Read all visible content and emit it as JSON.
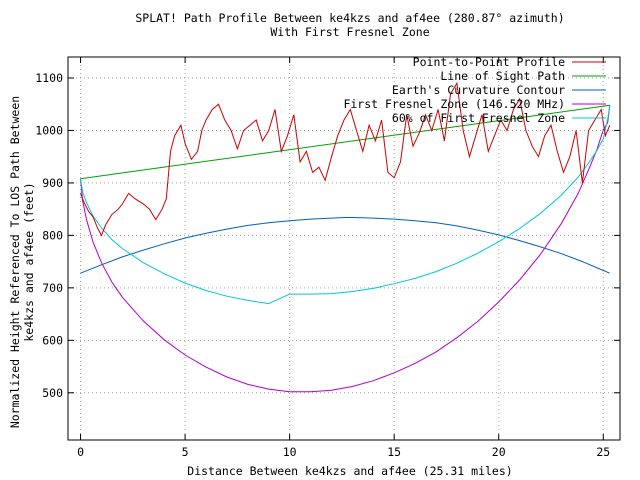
{
  "chart_data": {
    "type": "line",
    "title": "SPLAT! Path Profile Between ke4kzs and af4ee (280.87° azimuth)",
    "subtitle": "With First Fresnel Zone",
    "xlabel": "Distance Between ke4kzs and af4ee (25.31 miles)",
    "ylabel_line1": "Normalized Height Referenced To LOS Path Between",
    "ylabel_line2": "ke4kzs and af4ee (feet)",
    "xlim": [
      -0.6,
      25.8
    ],
    "ylim": [
      410,
      1140
    ],
    "x_ticks": [
      0,
      5,
      10,
      15,
      20,
      25
    ],
    "y_ticks": [
      500,
      600,
      700,
      800,
      900,
      1000,
      1100
    ],
    "grid": true,
    "legend_position": "top-right",
    "colors": {
      "profile": "#cc0000",
      "los": "#00a000",
      "earth": "#0060c0",
      "fresnel": "#b000d0",
      "fresnel60": "#00c8d8"
    },
    "series": [
      {
        "name": "Point-to-Point Profile",
        "key": "profile",
        "x": [
          0,
          0.2,
          0.4,
          0.6,
          0.8,
          1.0,
          1.2,
          1.5,
          1.8,
          2.0,
          2.3,
          2.6,
          3.0,
          3.3,
          3.6,
          3.9,
          4.1,
          4.3,
          4.5,
          4.8,
          5.0,
          5.3,
          5.6,
          5.8,
          6.0,
          6.3,
          6.6,
          6.9,
          7.2,
          7.5,
          7.8,
          8.1,
          8.4,
          8.7,
          9.0,
          9.3,
          9.6,
          9.9,
          10.2,
          10.5,
          10.8,
          11.1,
          11.4,
          11.7,
          12.0,
          12.3,
          12.6,
          12.9,
          13.2,
          13.5,
          13.8,
          14.1,
          14.4,
          14.7,
          15.0,
          15.3,
          15.6,
          15.9,
          16.2,
          16.5,
          16.8,
          17.1,
          17.4,
          17.7,
          18.0,
          18.3,
          18.6,
          18.9,
          19.2,
          19.5,
          19.8,
          20.1,
          20.4,
          20.7,
          21.0,
          21.3,
          21.6,
          21.9,
          22.2,
          22.5,
          22.8,
          23.1,
          23.4,
          23.7,
          24.0,
          24.3,
          24.6,
          24.9,
          25.1,
          25.31
        ],
        "values": [
          880,
          860,
          845,
          835,
          815,
          800,
          820,
          840,
          850,
          860,
          880,
          870,
          860,
          850,
          830,
          850,
          870,
          960,
          990,
          1010,
          975,
          945,
          960,
          1000,
          1020,
          1040,
          1050,
          1020,
          1000,
          965,
          1000,
          1010,
          1020,
          980,
          1000,
          1040,
          960,
          990,
          1030,
          940,
          960,
          920,
          930,
          905,
          950,
          990,
          1020,
          1040,
          1000,
          960,
          1010,
          980,
          1020,
          920,
          910,
          940,
          1030,
          970,
          995,
          1030,
          1000,
          1040,
          980,
          1070,
          1090,
          1000,
          950,
          990,
          1030,
          960,
          990,
          1020,
          1000,
          1040,
          1060,
          1000,
          970,
          950,
          990,
          1010,
          960,
          920,
          950,
          1000,
          900,
          1000,
          1020,
          1040,
          990,
          1010
        ]
      },
      {
        "name": "Line of Sight Path",
        "key": "los",
        "x": [
          0,
          25.31
        ],
        "values": [
          908,
          1048
        ]
      },
      {
        "name": "Earth's Curvature Contour",
        "key": "earth",
        "x": [
          0,
          1,
          2,
          3,
          4,
          5,
          6,
          7,
          8,
          9,
          10,
          11,
          12,
          12.65,
          13,
          14,
          15,
          16,
          17,
          18,
          19,
          20,
          21,
          22,
          23,
          24,
          25,
          25.31
        ],
        "values": [
          728,
          744,
          759,
          772,
          784,
          795,
          804,
          812,
          819,
          824,
          828,
          831,
          833,
          834,
          834,
          833,
          831,
          828,
          824,
          818,
          810,
          801,
          790,
          778,
          765,
          750,
          733,
          728
        ]
      },
      {
        "name": "First Fresnel Zone (146.520 MHz)",
        "key": "fresnel",
        "x": [
          0,
          0.1,
          0.3,
          0.6,
          1.0,
          1.5,
          2,
          3,
          4,
          5,
          6,
          7,
          8,
          9,
          10,
          11,
          12,
          13,
          14,
          15,
          16,
          17,
          18,
          19,
          20,
          21,
          22,
          23,
          23.8,
          24.3,
          24.7,
          25.0,
          25.21,
          25.31
        ],
        "values": [
          908,
          866,
          828,
          787,
          748,
          711,
          682,
          637,
          601,
          572,
          549,
          530,
          516,
          507,
          502,
          502,
          505,
          512,
          523,
          538,
          556,
          578,
          605,
          636,
          673,
          715,
          764,
          823,
          880,
          925,
          964,
          1001,
          1015,
          1048
        ]
      },
      {
        "name": "60% of First Fresnel Zone",
        "key": "fresnel60",
        "x": [
          0,
          0.1,
          0.3,
          0.6,
          1.0,
          1.5,
          2,
          3,
          4,
          5,
          6,
          7,
          8,
          9,
          10,
          11,
          12,
          13,
          14,
          15,
          16,
          17,
          18,
          19,
          20,
          21,
          22,
          23,
          23.8,
          24.3,
          24.7,
          25.0,
          25.21,
          25.31
        ],
        "values": [
          908,
          883,
          861,
          837,
          814,
          792,
          775,
          748,
          727,
          709,
          695,
          684,
          676,
          670,
          688,
          688,
          689,
          693,
          699,
          708,
          718,
          731,
          747,
          766,
          788,
          813,
          842,
          877,
          911,
          938,
          962,
          984,
          1022,
          1048
        ]
      }
    ]
  }
}
